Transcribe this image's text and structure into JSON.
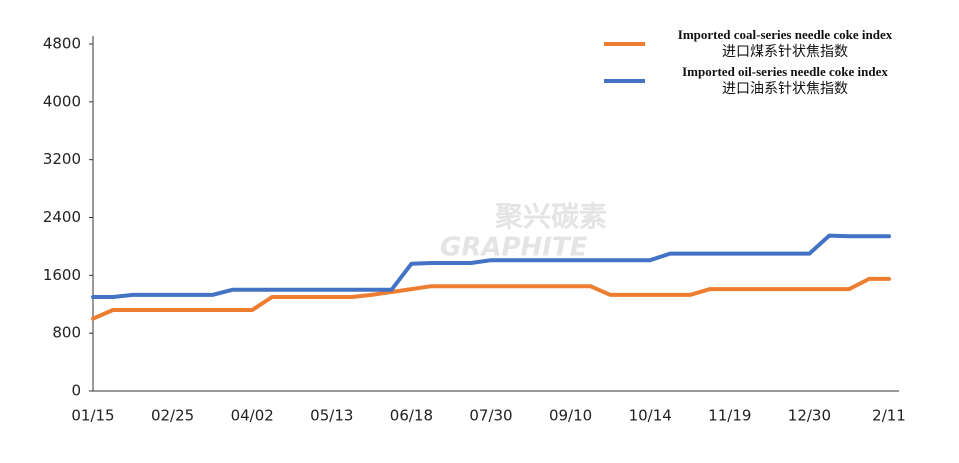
{
  "chart_data": {
    "type": "line",
    "categories": [
      "01/15",
      null,
      null,
      null,
      "02/25",
      null,
      null,
      null,
      "04/02",
      null,
      null,
      null,
      "05/13",
      null,
      null,
      null,
      "06/18",
      null,
      null,
      null,
      "07/30",
      null,
      null,
      null,
      "09/10",
      null,
      null,
      null,
      "10/14",
      null,
      null,
      null,
      "11/19",
      null,
      null,
      null,
      "12/30",
      null,
      null,
      null,
      "2/11"
    ],
    "series": [
      {
        "name": "Imported coal-series needle coke index",
        "name_cn": "进口煤系针状焦指数",
        "color": "#ed7d31",
        "values": [
          1000,
          1120,
          1120,
          1120,
          1120,
          1120,
          1120,
          1120,
          1120,
          1300,
          1300,
          1300,
          1300,
          1300,
          1330,
          1370,
          1410,
          1450,
          1450,
          1450,
          1450,
          1450,
          1450,
          1450,
          1450,
          1450,
          1330,
          1330,
          1330,
          1330,
          1330,
          1410,
          1410,
          1410,
          1410,
          1410,
          1410,
          1410,
          1410,
          1550,
          1550
        ]
      },
      {
        "name": "Imported oil-series needle coke index",
        "name_cn": "进口油系针状焦指数",
        "color": "#4472c4",
        "values": [
          1300,
          1300,
          1330,
          1330,
          1330,
          1330,
          1330,
          1400,
          1400,
          1400,
          1400,
          1400,
          1400,
          1400,
          1400,
          1400,
          1760,
          1770,
          1770,
          1770,
          1810,
          1810,
          1810,
          1810,
          1810,
          1810,
          1810,
          1810,
          1810,
          1900,
          1900,
          1900,
          1900,
          1900,
          1900,
          1900,
          1900,
          2150,
          2140,
          2140,
          2140
        ]
      }
    ],
    "ylim": [
      0,
      4800
    ],
    "yticks": [
      0,
      800,
      1600,
      2400,
      3200,
      4000,
      4800
    ],
    "grid": false,
    "legend": "top-right",
    "watermark": [
      "聚兴碳素",
      "GRAPHITE"
    ]
  }
}
